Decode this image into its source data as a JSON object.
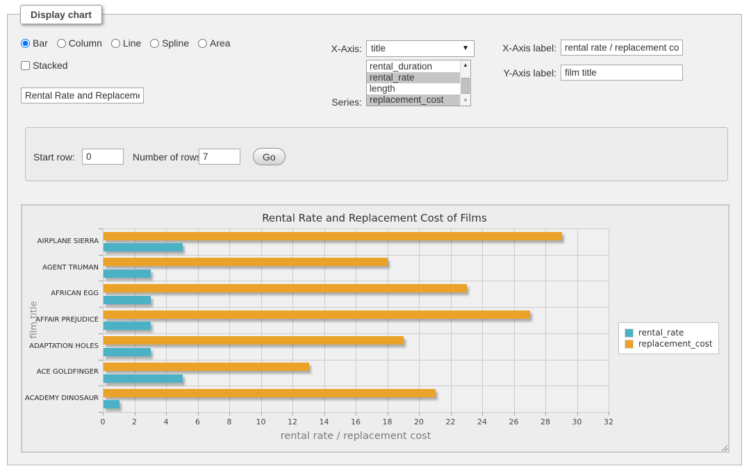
{
  "panel": {
    "legend_title": "Display chart",
    "chart_types": [
      {
        "label": "Bar",
        "selected": true
      },
      {
        "label": "Column",
        "selected": false
      },
      {
        "label": "Line",
        "selected": false
      },
      {
        "label": "Spline",
        "selected": false
      },
      {
        "label": "Area",
        "selected": false
      }
    ],
    "stacked": {
      "label": "Stacked",
      "checked": false
    },
    "chart_title_input": "Rental Rate and Replacemen",
    "x_axis": {
      "label": "X-Axis:",
      "value": "title"
    },
    "series_select": {
      "label": "Series:",
      "options": [
        {
          "label": "rental_duration",
          "selected": false
        },
        {
          "label": "rental_rate",
          "selected": true
        },
        {
          "label": "length",
          "selected": false
        },
        {
          "label": "replacement_cost",
          "selected": true
        }
      ]
    },
    "x_axis_label": {
      "label": "X-Axis label:",
      "value": "rental rate / replacement cost"
    },
    "y_axis_label": {
      "label": "Y-Axis label:",
      "value": "film title"
    }
  },
  "row_controls": {
    "start_row": {
      "label": "Start row:",
      "value": "0"
    },
    "number_of_rows": {
      "label": "Number of rows:",
      "value": "7"
    },
    "go_button": "Go"
  },
  "chart_data": {
    "type": "bar",
    "orientation": "horizontal",
    "title": "Rental Rate and Replacement Cost of Films",
    "xlabel": "rental rate / replacement cost",
    "ylabel": "film title",
    "categories": [
      "AIRPLANE SIERRA",
      "AGENT TRUMAN",
      "AFRICAN EGG",
      "AFFAIR PREJUDICE",
      "ADAPTATION HOLES",
      "ACE GOLDFINGER",
      "ACADEMY DINOSAUR"
    ],
    "series": [
      {
        "name": "rental_rate",
        "color": "#4bb2c5",
        "values": [
          4.99,
          2.99,
          2.99,
          2.99,
          2.99,
          4.99,
          0.99
        ]
      },
      {
        "name": "replacement_cost",
        "color": "#eaa228",
        "values": [
          28.99,
          17.99,
          22.99,
          26.99,
          18.99,
          12.99,
          20.99
        ]
      }
    ],
    "xlim": [
      0,
      32
    ],
    "xticks": [
      0,
      2,
      4,
      6,
      8,
      10,
      12,
      14,
      16,
      18,
      20,
      22,
      24,
      26,
      28,
      30,
      32
    ],
    "grid": true,
    "legend_position": "right"
  }
}
